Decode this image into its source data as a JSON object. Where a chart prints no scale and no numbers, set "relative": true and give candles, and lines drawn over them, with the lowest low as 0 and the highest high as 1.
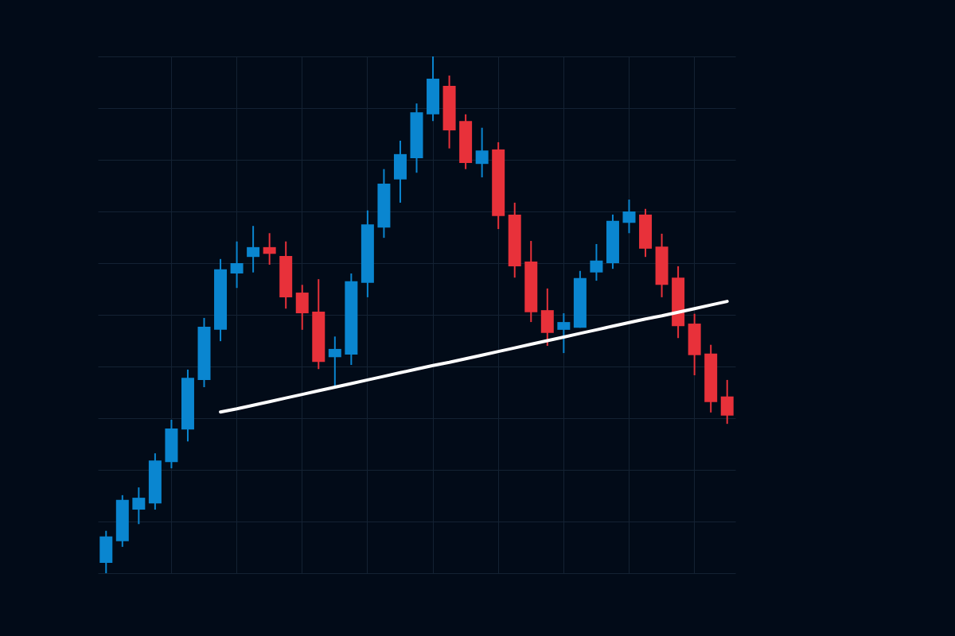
{
  "chart_data": {
    "type": "candlestick",
    "relative": true,
    "grid": true,
    "categories": [
      null,
      null,
      null,
      null,
      null,
      null,
      null,
      null,
      null,
      null,
      null,
      null,
      null,
      null,
      null,
      null,
      null,
      null,
      null,
      null,
      null,
      null,
      null,
      null,
      null,
      null,
      null,
      null,
      null,
      null,
      null,
      null,
      null,
      null,
      null,
      null,
      null,
      null,
      null
    ],
    "ohlc": [
      [
        0.02,
        0.082,
        0.0,
        0.071
      ],
      [
        0.062,
        0.151,
        0.051,
        0.142
      ],
      [
        0.123,
        0.166,
        0.095,
        0.146
      ],
      [
        0.135,
        0.232,
        0.123,
        0.218
      ],
      [
        0.215,
        0.297,
        0.203,
        0.28
      ],
      [
        0.278,
        0.394,
        0.255,
        0.378
      ],
      [
        0.374,
        0.494,
        0.36,
        0.477
      ],
      [
        0.471,
        0.608,
        0.449,
        0.588
      ],
      [
        0.58,
        0.642,
        0.552,
        0.6
      ],
      [
        0.612,
        0.672,
        0.582,
        0.631
      ],
      [
        0.631,
        0.658,
        0.597,
        0.618
      ],
      [
        0.614,
        0.642,
        0.512,
        0.534
      ],
      [
        0.543,
        0.558,
        0.471,
        0.503
      ],
      [
        0.506,
        0.569,
        0.395,
        0.409
      ],
      [
        0.418,
        0.458,
        0.36,
        0.434
      ],
      [
        0.423,
        0.58,
        0.403,
        0.565
      ],
      [
        0.562,
        0.702,
        0.534,
        0.675
      ],
      [
        0.669,
        0.782,
        0.649,
        0.754
      ],
      [
        0.762,
        0.837,
        0.717,
        0.811
      ],
      [
        0.803,
        0.909,
        0.775,
        0.892
      ],
      [
        0.888,
        1.0,
        0.875,
        0.957
      ],
      [
        0.943,
        0.963,
        0.822,
        0.857
      ],
      [
        0.875,
        0.888,
        0.782,
        0.794
      ],
      [
        0.792,
        0.862,
        0.766,
        0.818
      ],
      [
        0.82,
        0.834,
        0.666,
        0.691
      ],
      [
        0.694,
        0.717,
        0.572,
        0.594
      ],
      [
        0.603,
        0.643,
        0.486,
        0.505
      ],
      [
        0.509,
        0.551,
        0.44,
        0.465
      ],
      [
        0.471,
        0.503,
        0.426,
        0.486
      ],
      [
        0.475,
        0.585,
        0.475,
        0.571
      ],
      [
        0.582,
        0.637,
        0.566,
        0.605
      ],
      [
        0.6,
        0.694,
        0.589,
        0.682
      ],
      [
        0.678,
        0.723,
        0.658,
        0.7
      ],
      [
        0.694,
        0.705,
        0.612,
        0.628
      ],
      [
        0.632,
        0.657,
        0.534,
        0.558
      ],
      [
        0.572,
        0.594,
        0.455,
        0.478
      ],
      [
        0.483,
        0.502,
        0.383,
        0.422
      ],
      [
        0.425,
        0.442,
        0.311,
        0.331
      ],
      [
        0.342,
        0.374,
        0.289,
        0.305
      ]
    ],
    "colors": [
      "#0a86d0",
      "#0a86d0",
      "#0a86d0",
      "#0a86d0",
      "#0a86d0",
      "#0a86d0",
      "#0a86d0",
      "#0a86d0",
      "#0a86d0",
      "#0a86d0",
      "#e8313a",
      "#e8313a",
      "#e8313a",
      "#e8313a",
      "#0a86d0",
      "#0a86d0",
      "#0a86d0",
      "#0a86d0",
      "#0a86d0",
      "#0a86d0",
      "#0a86d0",
      "#e8313a",
      "#e8313a",
      "#0a86d0",
      "#e8313a",
      "#e8313a",
      "#e8313a",
      "#e8313a",
      "#0a86d0",
      "#0a86d0",
      "#0a86d0",
      "#0a86d0",
      "#0a86d0",
      "#e8313a",
      "#e8313a",
      "#e8313a",
      "#e8313a",
      "#e8313a",
      "#e8313a"
    ],
    "series": [
      {
        "type": "line",
        "values": [
          null,
          null,
          null,
          null,
          null,
          null,
          null,
          0.312,
          0.318,
          0.325,
          0.332,
          0.339,
          0.346,
          0.353,
          0.36,
          0.367,
          0.374,
          0.381,
          0.388,
          0.395,
          0.402,
          0.408,
          0.415,
          0.422,
          0.429,
          0.436,
          0.443,
          0.45,
          0.457,
          0.464,
          0.471,
          0.478,
          0.485,
          0.492,
          0.498,
          0.505,
          0.512,
          0.519,
          0.526
        ],
        "color": "#ffffff"
      }
    ]
  }
}
